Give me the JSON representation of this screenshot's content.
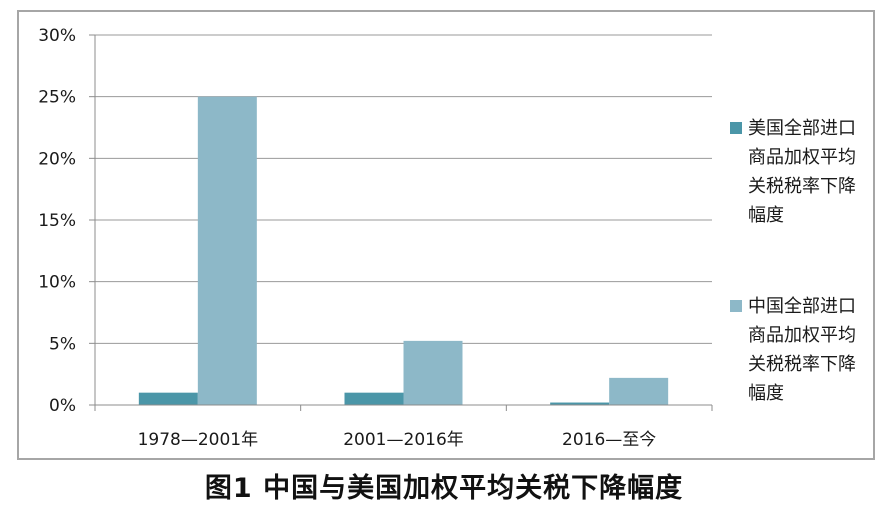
{
  "chart_data": {
    "type": "bar",
    "title": "图1  中国与美国加权平均关税下降幅度",
    "categories": [
      "1978—2001年",
      "2001—2016年",
      "2016—至今"
    ],
    "y_ticks": [
      "0%",
      "5%",
      "10%",
      "15%",
      "20%",
      "25%",
      "30%"
    ],
    "ylim": [
      0,
      30
    ],
    "grid": true,
    "legend_position": "right",
    "series": [
      {
        "name": "美国全部进口商品加权平均关税税率下降幅度",
        "color": "#4b96a8",
        "values": [
          1.0,
          1.0,
          0.2
        ]
      },
      {
        "name": "中国全部进口商品加权平均关税税率下降幅度",
        "color": "#8db8c8",
        "values": [
          25.0,
          5.2,
          2.2
        ]
      }
    ]
  }
}
